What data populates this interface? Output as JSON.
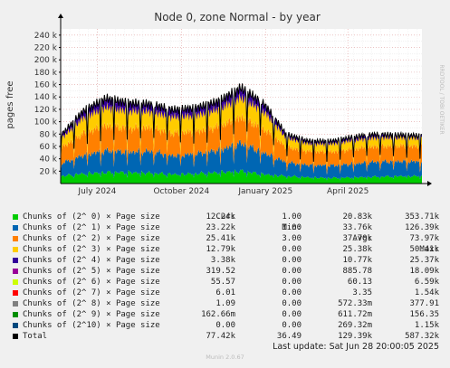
{
  "chart_data": {
    "type": "area",
    "title": "Node 0, zone Normal - by year",
    "ylabel": "pages free",
    "watermark": "RRDTOOL / TOBI OETIKER",
    "ylim": [
      0,
      250000
    ],
    "yticks": [
      20000,
      40000,
      60000,
      80000,
      100000,
      120000,
      140000,
      160000,
      180000,
      200000,
      220000,
      240000
    ],
    "ytick_labels": [
      "20 k",
      "40 k",
      "60 k",
      "80 k",
      "100 k",
      "120 k",
      "140 k",
      "160 k",
      "180 k",
      "200 k",
      "220 k",
      "240 k"
    ],
    "xlabels": [
      {
        "label": "July 2024",
        "day": 40
      },
      {
        "label": "October 2024",
        "day": 132
      },
      {
        "label": "January 2025",
        "day": 224
      },
      {
        "label": "April 2025",
        "day": 314
      }
    ],
    "x_days_total": 395,
    "series": [
      {
        "name": "Chunks of (2^ 0) × Page size",
        "color": "#00cc00",
        "cur": "12.24k",
        "min": "1.00",
        "avg": "20.83k",
        "max": "353.71k",
        "trend": [
          12000,
          16000,
          18000,
          18000,
          17000,
          15000,
          16000,
          18000,
          20000,
          15000,
          12000,
          10000,
          9000,
          10000,
          11000,
          12000,
          12000
        ]
      },
      {
        "name": "Chunks of (2^ 1) × Page size",
        "color": "#0066b3",
        "cur": "23.22k",
        "min": "1.00",
        "avg": "33.76k",
        "max": "126.39k",
        "trend": [
          20000,
          30000,
          35000,
          33000,
          35000,
          30000,
          32000,
          36000,
          45000,
          35000,
          22000,
          20000,
          20000,
          22000,
          24000,
          24000,
          23000
        ]
      },
      {
        "name": "Chunks of (2^ 2) × Page size",
        "color": "#ff8000",
        "cur": "25.41k",
        "min": "3.00",
        "avg": "37.70k",
        "max": "73.97k",
        "trend": [
          25000,
          35000,
          40000,
          38000,
          38000,
          36000,
          36000,
          38000,
          42000,
          38000,
          25000,
          22000,
          22000,
          24000,
          25000,
          25000,
          25000
        ]
      },
      {
        "name": "Chunks of (2^ 3) × Page size",
        "color": "#ffcc00",
        "cur": "12.79k",
        "min": "0.00",
        "avg": "25.38k",
        "max": "50.41k",
        "trend": [
          15000,
          25000,
          30000,
          28000,
          26000,
          26000,
          26000,
          28000,
          32000,
          28000,
          15000,
          12000,
          13000,
          14000,
          14000,
          13000,
          13000
        ]
      },
      {
        "name": "Chunks of (2^ 4) × Page size",
        "color": "#330099",
        "cur": "3.38k",
        "min": "0.00",
        "avg": "10.77k",
        "max": "25.37k",
        "trend": [
          5000,
          10000,
          13000,
          12000,
          11000,
          11000,
          11000,
          12000,
          14000,
          12000,
          5000,
          4000,
          4000,
          5000,
          5000,
          4000,
          3500
        ]
      },
      {
        "name": "Chunks of (2^ 5) × Page size",
        "color": "#990099",
        "cur": "319.52",
        "min": "0.00",
        "avg": "885.78",
        "max": "18.09k",
        "trend": [
          500,
          900,
          1200,
          1000,
          900,
          900,
          900,
          1000,
          1400,
          1000,
          400,
          300,
          300,
          400,
          400,
          300,
          300
        ]
      },
      {
        "name": "Chunks of (2^ 6) × Page size",
        "color": "#ccff00",
        "cur": "55.57",
        "min": "0.00",
        "avg": "60.13",
        "max": "6.59k",
        "trend": [
          60,
          60,
          60,
          60,
          60,
          60,
          60,
          60,
          60,
          60,
          60,
          60,
          60,
          60,
          60,
          60,
          55
        ]
      },
      {
        "name": "Chunks of (2^ 7) × Page size",
        "color": "#ff0000",
        "cur": "6.01",
        "min": "0.00",
        "avg": "3.35",
        "max": "1.54k",
        "trend": [
          3,
          3,
          3,
          3,
          3,
          3,
          3,
          3,
          3,
          3,
          3,
          3,
          3,
          3,
          3,
          3,
          6
        ]
      },
      {
        "name": "Chunks of (2^ 8) × Page size",
        "color": "#808080",
        "cur": "1.09",
        "min": "0.00",
        "avg": "572.33m",
        "max": "377.91",
        "trend": [
          1,
          1,
          1,
          1,
          1,
          1,
          1,
          1,
          1,
          1,
          1,
          1,
          1,
          1,
          1,
          1,
          1
        ]
      },
      {
        "name": "Chunks of (2^ 9) × Page size",
        "color": "#008f00",
        "cur": "162.66m",
        "min": "0.00",
        "avg": "611.72m",
        "max": "156.35",
        "trend": [
          0,
          0,
          0,
          0,
          0,
          0,
          0,
          0,
          0,
          0,
          0,
          0,
          0,
          0,
          0,
          0,
          0
        ]
      },
      {
        "name": "Chunks of (2^10) × Page size",
        "color": "#00487d",
        "cur": "0.00",
        "min": "0.00",
        "avg": "269.32m",
        "max": "1.15k",
        "trend": [
          0,
          0,
          0,
          0,
          0,
          0,
          0,
          0,
          0,
          0,
          0,
          0,
          0,
          0,
          0,
          0,
          0
        ]
      }
    ],
    "total": {
      "name": "Total",
      "color": "#000000",
      "cur": "77.42k",
      "min": "36.49",
      "avg": "129.39k",
      "max": "587.32k"
    }
  },
  "legend_headers": {
    "cur": "Cur:",
    "min": "Min:",
    "avg": "Avg:",
    "max": "Max:"
  },
  "footer": {
    "last_update": "Last update: Sat Jun 28 20:00:05 2025",
    "munin": "Munin 2.0.67"
  }
}
